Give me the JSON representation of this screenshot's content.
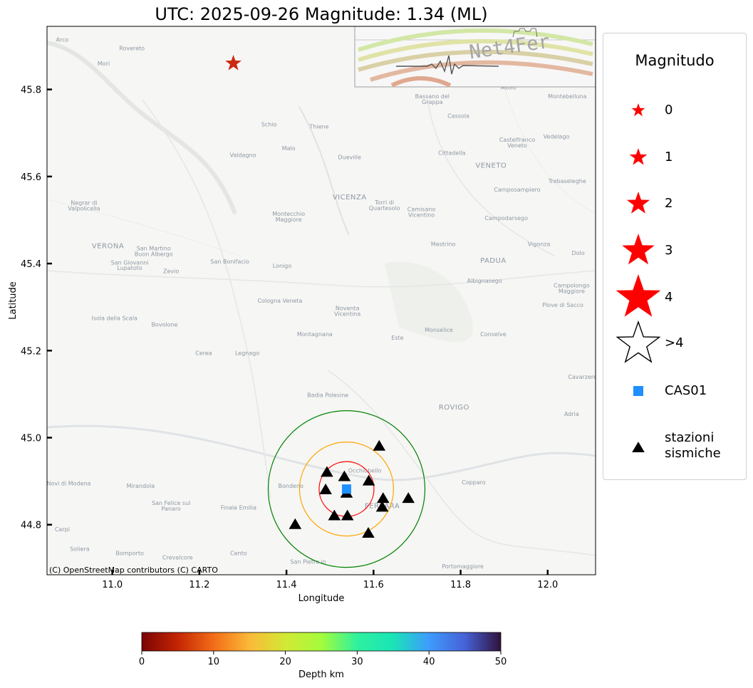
{
  "title": "UTC: 2025-09-26 Magnitude: 1.34 (ML)",
  "attribution": "(C) OpenStreetMap contributors (C) CARTO",
  "logo_text": "Net4Fer",
  "legend": {
    "title": "Magnitudo",
    "items": [
      {
        "label": "0",
        "symbol": "star",
        "color": "#ff0000"
      },
      {
        "label": "1",
        "symbol": "star",
        "color": "#ff0000"
      },
      {
        "label": "2",
        "symbol": "star",
        "color": "#ff0000"
      },
      {
        "label": "3",
        "symbol": "star",
        "color": "#ff0000"
      },
      {
        "label": "4",
        "symbol": "star",
        "color": "#ff0000"
      },
      {
        "label": ">4",
        "symbol": "star-outline",
        "color": "#000000"
      },
      {
        "label": "CAS01",
        "symbol": "square",
        "color": "#1e90ff"
      },
      {
        "label": "stazioni\nsismiche",
        "symbol": "triangle",
        "color": "#000000"
      }
    ]
  },
  "map_labels": [
    {
      "text": "Arco",
      "lon": 10.885,
      "lat": 45.91
    },
    {
      "text": "Rovereto",
      "lon": 11.045,
      "lat": 45.89
    },
    {
      "text": "Mori",
      "lon": 10.98,
      "lat": 45.855
    },
    {
      "text": "Schio",
      "lon": 11.36,
      "lat": 45.715
    },
    {
      "text": "Thiene",
      "lon": 11.475,
      "lat": 45.71
    },
    {
      "text": "Malo",
      "lon": 11.405,
      "lat": 45.66
    },
    {
      "text": "Valdagno",
      "lon": 11.3,
      "lat": 45.645
    },
    {
      "text": "Dueville",
      "lon": 11.545,
      "lat": 45.64
    },
    {
      "text": "VICENZA",
      "lon": 11.545,
      "lat": 45.547,
      "big": true
    },
    {
      "text": "Torri di",
      "lon": 11.625,
      "lat": 45.536
    },
    {
      "text": "Quartesolo",
      "lon": 11.625,
      "lat": 45.523
    },
    {
      "text": "Camisano",
      "lon": 11.71,
      "lat": 45.52
    },
    {
      "text": "Vicentino",
      "lon": 11.71,
      "lat": 45.507
    },
    {
      "text": "Montecchio",
      "lon": 11.405,
      "lat": 45.51
    },
    {
      "text": "Maggiore",
      "lon": 11.405,
      "lat": 45.497
    },
    {
      "text": "Negrar di",
      "lon": 10.935,
      "lat": 45.535
    },
    {
      "text": "Valpolicella",
      "lon": 10.935,
      "lat": 45.522
    },
    {
      "text": "VERONA",
      "lon": 10.99,
      "lat": 45.435,
      "big": true
    },
    {
      "text": "San Martino",
      "lon": 11.095,
      "lat": 45.43
    },
    {
      "text": "Buon Albergo",
      "lon": 11.095,
      "lat": 45.417
    },
    {
      "text": "San Giovanni",
      "lon": 11.04,
      "lat": 45.398
    },
    {
      "text": "Lupatoto",
      "lon": 11.04,
      "lat": 45.385
    },
    {
      "text": "Zevio",
      "lon": 11.135,
      "lat": 45.378
    },
    {
      "text": "San Bonifacio",
      "lon": 11.27,
      "lat": 45.4
    },
    {
      "text": "Lonigo",
      "lon": 11.39,
      "lat": 45.39
    },
    {
      "text": "Bassano del",
      "lon": 11.735,
      "lat": 45.78
    },
    {
      "text": "Grappa",
      "lon": 11.735,
      "lat": 45.767
    },
    {
      "text": "Cassola",
      "lon": 11.795,
      "lat": 45.735
    },
    {
      "text": "Asolo",
      "lon": 11.91,
      "lat": 45.8
    },
    {
      "text": "Montebelluna",
      "lon": 12.045,
      "lat": 45.78
    },
    {
      "text": "Vedelago",
      "lon": 12.02,
      "lat": 45.687
    },
    {
      "text": "Castelfranco",
      "lon": 11.93,
      "lat": 45.68
    },
    {
      "text": "Veneto",
      "lon": 11.93,
      "lat": 45.667
    },
    {
      "text": "VENETO",
      "lon": 11.87,
      "lat": 45.62,
      "big": true
    },
    {
      "text": "Cittadella",
      "lon": 11.78,
      "lat": 45.65
    },
    {
      "text": "Trebaseleghe",
      "lon": 12.045,
      "lat": 45.585
    },
    {
      "text": "Camposampiero",
      "lon": 11.93,
      "lat": 45.565
    },
    {
      "text": "Campodarsego",
      "lon": 11.905,
      "lat": 45.5
    },
    {
      "text": "Mestrino",
      "lon": 11.76,
      "lat": 45.44
    },
    {
      "text": "Vigonza",
      "lon": 11.98,
      "lat": 45.44
    },
    {
      "text": "PADUA",
      "lon": 11.875,
      "lat": 45.402,
      "big": true
    },
    {
      "text": "Dolo",
      "lon": 12.07,
      "lat": 45.42
    },
    {
      "text": "Albignasego",
      "lon": 11.855,
      "lat": 45.356
    },
    {
      "text": "Campolongo",
      "lon": 12.055,
      "lat": 45.345
    },
    {
      "text": "Maggiore",
      "lon": 12.055,
      "lat": 45.332
    },
    {
      "text": "Piove di Sacco",
      "lon": 12.035,
      "lat": 45.3
    },
    {
      "text": "Cologna Veneta",
      "lon": 11.385,
      "lat": 45.31
    },
    {
      "text": "Noventa",
      "lon": 11.54,
      "lat": 45.293
    },
    {
      "text": "Vicentina",
      "lon": 11.54,
      "lat": 45.28
    },
    {
      "text": "Isola della Scala",
      "lon": 11.005,
      "lat": 45.27
    },
    {
      "text": "Bovolone",
      "lon": 11.12,
      "lat": 45.255
    },
    {
      "text": "Montagnana",
      "lon": 11.465,
      "lat": 45.233
    },
    {
      "text": "Monselice",
      "lon": 11.75,
      "lat": 45.243
    },
    {
      "text": "Conselve",
      "lon": 11.875,
      "lat": 45.233
    },
    {
      "text": "Este",
      "lon": 11.655,
      "lat": 45.225
    },
    {
      "text": "Cerea",
      "lon": 11.21,
      "lat": 45.19
    },
    {
      "text": "Legnago",
      "lon": 11.31,
      "lat": 45.19
    },
    {
      "text": "Cavarzere",
      "lon": 12.08,
      "lat": 45.135
    },
    {
      "text": "Badia Polesine",
      "lon": 11.495,
      "lat": 45.093
    },
    {
      "text": "ROVIGO",
      "lon": 11.785,
      "lat": 45.065,
      "big": true
    },
    {
      "text": "Adria",
      "lon": 12.055,
      "lat": 45.05
    },
    {
      "text": "Novi di Modena",
      "lon": 10.9,
      "lat": 44.89
    },
    {
      "text": "Mirandola",
      "lon": 11.065,
      "lat": 44.885
    },
    {
      "text": "Bondeno",
      "lon": 11.41,
      "lat": 44.885
    },
    {
      "text": "Occhiobello",
      "lon": 11.58,
      "lat": 44.92
    },
    {
      "text": "Copparo",
      "lon": 11.83,
      "lat": 44.893
    },
    {
      "text": "FERRARA",
      "lon": 11.62,
      "lat": 44.838,
      "big": true
    },
    {
      "text": "San Felice sul",
      "lon": 11.135,
      "lat": 44.845
    },
    {
      "text": "Panaro",
      "lon": 11.135,
      "lat": 44.832
    },
    {
      "text": "Finale Emilia",
      "lon": 11.29,
      "lat": 44.835
    },
    {
      "text": "Carpi",
      "lon": 10.885,
      "lat": 44.785
    },
    {
      "text": "Soliera",
      "lon": 10.925,
      "lat": 44.74
    },
    {
      "text": "Bomporto",
      "lon": 11.04,
      "lat": 44.73
    },
    {
      "text": "Crevalcore",
      "lon": 11.15,
      "lat": 44.72
    },
    {
      "text": "Cento",
      "lon": 11.29,
      "lat": 44.73
    },
    {
      "text": "San Pietro in",
      "lon": 11.45,
      "lat": 44.71
    },
    {
      "text": "Portomaggiore",
      "lon": 11.805,
      "lat": 44.7
    }
  ],
  "chart_data": {
    "type": "scatter",
    "xlabel": "Longitude",
    "ylabel": "Latitude",
    "xlim": [
      10.85,
      12.11
    ],
    "ylim": [
      44.685,
      45.945
    ],
    "xticks": [
      "11.0",
      "11.2",
      "11.4",
      "11.6",
      "11.8",
      "12.0"
    ],
    "xtick_values": [
      11.0,
      11.2,
      11.4,
      11.6,
      11.8,
      12.0
    ],
    "yticks": [
      "44.8",
      "45.0",
      "45.2",
      "45.4",
      "45.6",
      "45.8"
    ],
    "ytick_values": [
      44.8,
      45.0,
      45.2,
      45.4,
      45.6,
      45.8
    ],
    "event": {
      "lon": 11.278,
      "lat": 45.86,
      "magnitude": 1.34,
      "depth_km": 8,
      "color": "#cc2a10"
    },
    "reference_station": {
      "name": "CAS01",
      "lon": 11.538,
      "lat": 44.882,
      "color": "#1e90ff"
    },
    "stations": [
      {
        "lon": 11.613,
        "lat": 44.98
      },
      {
        "lon": 11.493,
        "lat": 44.92
      },
      {
        "lon": 11.533,
        "lat": 44.91
      },
      {
        "lon": 11.589,
        "lat": 44.9
      },
      {
        "lon": 11.49,
        "lat": 44.88
      },
      {
        "lon": 11.538,
        "lat": 44.872
      },
      {
        "lon": 11.622,
        "lat": 44.86
      },
      {
        "lon": 11.68,
        "lat": 44.86
      },
      {
        "lon": 11.62,
        "lat": 44.84
      },
      {
        "lon": 11.51,
        "lat": 44.82
      },
      {
        "lon": 11.54,
        "lat": 44.82
      },
      {
        "lon": 11.42,
        "lat": 44.8
      },
      {
        "lon": 11.588,
        "lat": 44.78
      }
    ],
    "circles": [
      {
        "lon": 11.538,
        "lat": 44.882,
        "radius_deg": 0.063,
        "color": "#ff0000"
      },
      {
        "lon": 11.538,
        "lat": 44.882,
        "radius_deg": 0.108,
        "color": "#ffa500"
      },
      {
        "lon": 11.538,
        "lat": 44.882,
        "radius_deg": 0.18,
        "color": "#008000"
      }
    ],
    "colorbar": {
      "label": "Depth km",
      "min": 0,
      "max": 50,
      "ticks": [
        "0",
        "10",
        "20",
        "30",
        "40",
        "50"
      ],
      "tick_values": [
        0,
        10,
        20,
        30,
        40,
        50
      ],
      "colormap": "turbo_r",
      "stops": [
        "#7a0403",
        "#c42503",
        "#f26d18",
        "#fbb938",
        "#d2e935",
        "#a4fc3c",
        "#2ef19e",
        "#1ae4b6",
        "#3e9bfe",
        "#4662d7",
        "#30123b"
      ]
    }
  }
}
